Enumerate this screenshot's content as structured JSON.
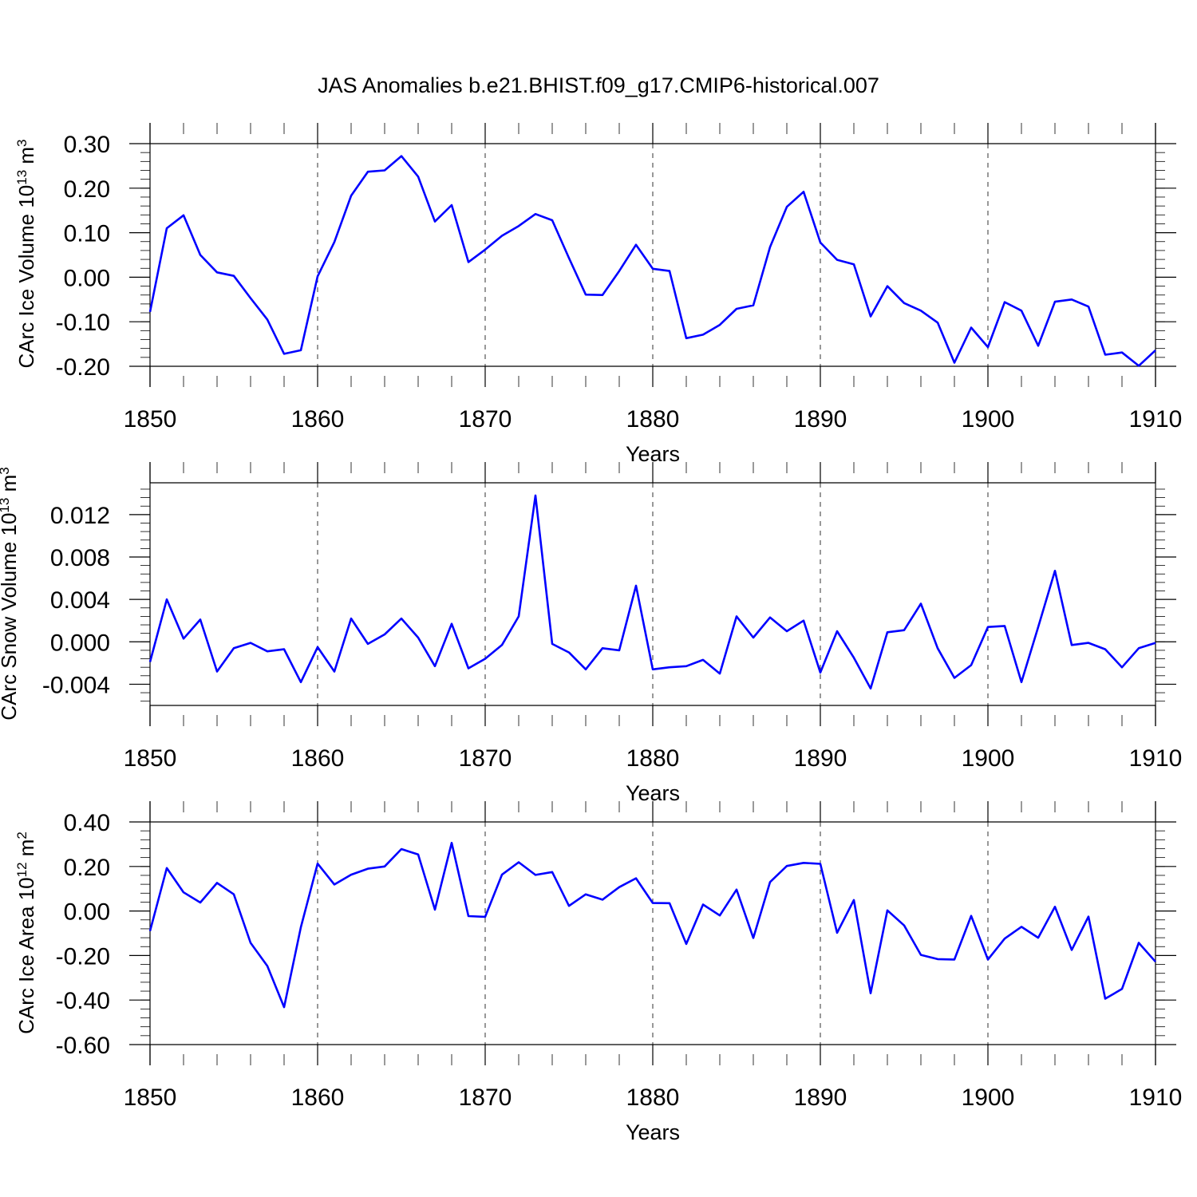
{
  "figure_title": "JAS Anomalies b.e21.BHIST.f09_g17.CMIP6-historical.007",
  "colors": {
    "line": "#0000ff",
    "axis": "#000000",
    "background": "#ffffff"
  },
  "chart_data": [
    {
      "type": "line",
      "title": "JAS Anomalies b.e21.BHIST.f09_g17.CMIP6-historical.007",
      "xlabel": "Years",
      "ylabel_main": "CArc Ice Volume 10",
      "ylabel_exp": "13",
      "ylabel_unit": " m",
      "ylabel_unit_exp": "3",
      "xlim": [
        1850,
        1910
      ],
      "ylim": [
        -0.2,
        0.3
      ],
      "xticks": [
        1850,
        1860,
        1870,
        1880,
        1890,
        1900,
        1910
      ],
      "xtick_labels": [
        "1850",
        "1860",
        "1870",
        "1880",
        "1890",
        "1900",
        "1910"
      ],
      "yticks": [
        -0.2,
        -0.1,
        0.0,
        0.1,
        0.2,
        0.3
      ],
      "ytick_labels": [
        "-0.20",
        "-0.10",
        "0.00",
        "0.10",
        "0.20",
        "0.30"
      ],
      "grid": "dashed vertical at major x ticks",
      "series": [
        {
          "name": "CArc Ice Volume",
          "x": [
            1850,
            1851,
            1852,
            1853,
            1854,
            1855,
            1856,
            1857,
            1858,
            1859,
            1860,
            1861,
            1862,
            1863,
            1864,
            1865,
            1866,
            1867,
            1868,
            1869,
            1870,
            1871,
            1872,
            1873,
            1874,
            1875,
            1876,
            1877,
            1878,
            1879,
            1880,
            1881,
            1882,
            1883,
            1884,
            1885,
            1886,
            1887,
            1888,
            1889,
            1890,
            1891,
            1892,
            1893,
            1894,
            1895,
            1896,
            1897,
            1898,
            1899,
            1900,
            1901,
            1902,
            1903,
            1904,
            1905,
            1906,
            1907,
            1908,
            1909,
            1910
          ],
          "values": [
            -0.078,
            0.11,
            0.139,
            0.05,
            0.011,
            0.003,
            -0.047,
            -0.095,
            -0.172,
            -0.164,
            0.002,
            0.079,
            0.183,
            0.237,
            0.24,
            0.272,
            0.226,
            0.125,
            0.162,
            0.034,
            0.062,
            0.093,
            0.115,
            0.142,
            0.128,
            0.043,
            -0.039,
            -0.04,
            0.014,
            0.073,
            0.019,
            0.014,
            -0.137,
            -0.129,
            -0.107,
            -0.071,
            -0.063,
            0.068,
            0.158,
            0.192,
            0.078,
            0.039,
            0.029,
            -0.088,
            -0.02,
            -0.058,
            -0.075,
            -0.102,
            -0.192,
            -0.113,
            -0.157,
            -0.056,
            -0.075,
            -0.154,
            -0.055,
            -0.05,
            -0.066,
            -0.174,
            -0.169,
            -0.199,
            -0.164
          ]
        }
      ]
    },
    {
      "type": "line",
      "xlabel": "Years",
      "ylabel_main": "CArc Snow Volume 10",
      "ylabel_exp": "13",
      "ylabel_unit": " m",
      "ylabel_unit_exp": "3",
      "xlim": [
        1850,
        1910
      ],
      "ylim": [
        -0.006,
        0.015
      ],
      "xticks": [
        1850,
        1860,
        1870,
        1880,
        1890,
        1900,
        1910
      ],
      "xtick_labels": [
        "1850",
        "1860",
        "1870",
        "1880",
        "1890",
        "1900",
        "1910"
      ],
      "yticks": [
        -0.004,
        0.0,
        0.004,
        0.008,
        0.012
      ],
      "ytick_labels": [
        "-0.004",
        "0.000",
        "0.004",
        "0.008",
        "0.012"
      ],
      "grid": "dashed vertical at major x ticks",
      "series": [
        {
          "name": "CArc Snow Volume",
          "x": [
            1850,
            1851,
            1852,
            1853,
            1854,
            1855,
            1856,
            1857,
            1858,
            1859,
            1860,
            1861,
            1862,
            1863,
            1864,
            1865,
            1866,
            1867,
            1868,
            1869,
            1870,
            1871,
            1872,
            1873,
            1874,
            1875,
            1876,
            1877,
            1878,
            1879,
            1880,
            1881,
            1882,
            1883,
            1884,
            1885,
            1886,
            1887,
            1888,
            1889,
            1890,
            1891,
            1892,
            1893,
            1894,
            1895,
            1896,
            1897,
            1898,
            1899,
            1900,
            1901,
            1902,
            1903,
            1904,
            1905,
            1906,
            1907,
            1908,
            1909,
            1910
          ],
          "values": [
            -0.0019,
            0.004,
            0.0003,
            0.0021,
            -0.0028,
            -0.0006,
            -0.0001,
            -0.0009,
            -0.0007,
            -0.0038,
            -0.0005,
            -0.0028,
            0.0022,
            -0.0002,
            0.0007,
            0.0022,
            0.0004,
            -0.0023,
            0.0017,
            -0.0025,
            -0.0016,
            -0.0003,
            0.0024,
            0.0138,
            -0.0002,
            -0.001,
            -0.0026,
            -0.0006,
            -0.0008,
            0.0053,
            -0.0026,
            -0.0024,
            -0.0023,
            -0.0017,
            -0.003,
            0.0024,
            0.0004,
            0.0023,
            0.001,
            0.002,
            -0.0029,
            0.001,
            -0.0015,
            -0.0044,
            0.0009,
            0.0011,
            0.0036,
            -0.0006,
            -0.0034,
            -0.0022,
            0.0014,
            0.0015,
            -0.0038,
            0.0014,
            0.0067,
            -0.0003,
            -0.0001,
            -0.0007,
            -0.0024,
            -0.0006,
            -0.0001
          ]
        }
      ]
    },
    {
      "type": "line",
      "xlabel": "Years",
      "ylabel_main": "CArc Ice Area 10",
      "ylabel_exp": "12",
      "ylabel_unit": " m",
      "ylabel_unit_exp": "2",
      "xlim": [
        1850,
        1910
      ],
      "ylim": [
        -0.6,
        0.4
      ],
      "xticks": [
        1850,
        1860,
        1870,
        1880,
        1890,
        1900,
        1910
      ],
      "xtick_labels": [
        "1850",
        "1860",
        "1870",
        "1880",
        "1890",
        "1900",
        "1910"
      ],
      "yticks": [
        -0.6,
        -0.4,
        -0.2,
        0.0,
        0.2,
        0.4
      ],
      "ytick_labels": [
        "-0.60",
        "-0.40",
        "-0.20",
        "0.00",
        "0.20",
        "0.40"
      ],
      "grid": "dashed vertical at major x ticks",
      "series": [
        {
          "name": "CArc Ice Area",
          "x": [
            1850,
            1851,
            1852,
            1853,
            1854,
            1855,
            1856,
            1857,
            1858,
            1859,
            1860,
            1861,
            1862,
            1863,
            1864,
            1865,
            1866,
            1867,
            1868,
            1869,
            1870,
            1871,
            1872,
            1873,
            1874,
            1875,
            1876,
            1877,
            1878,
            1879,
            1880,
            1881,
            1882,
            1883,
            1884,
            1885,
            1886,
            1887,
            1888,
            1889,
            1890,
            1891,
            1892,
            1893,
            1894,
            1895,
            1896,
            1897,
            1898,
            1899,
            1900,
            1901,
            1902,
            1903,
            1904,
            1905,
            1906,
            1907,
            1908,
            1909,
            1910
          ],
          "values": [
            -0.09,
            0.193,
            0.084,
            0.038,
            0.126,
            0.075,
            -0.143,
            -0.247,
            -0.432,
            -0.073,
            0.213,
            0.119,
            0.163,
            0.19,
            0.2,
            0.278,
            0.254,
            0.006,
            0.306,
            -0.023,
            -0.026,
            0.163,
            0.219,
            0.162,
            0.175,
            0.023,
            0.075,
            0.051,
            0.107,
            0.147,
            0.036,
            0.035,
            -0.148,
            0.029,
            -0.02,
            0.096,
            -0.121,
            0.13,
            0.202,
            0.216,
            0.212,
            -0.098,
            0.049,
            -0.369,
            0.003,
            -0.065,
            -0.197,
            -0.216,
            -0.218,
            -0.022,
            -0.218,
            -0.124,
            -0.071,
            -0.12,
            0.019,
            -0.175,
            -0.025,
            -0.394,
            -0.35,
            -0.143,
            -0.228
          ]
        }
      ]
    }
  ]
}
